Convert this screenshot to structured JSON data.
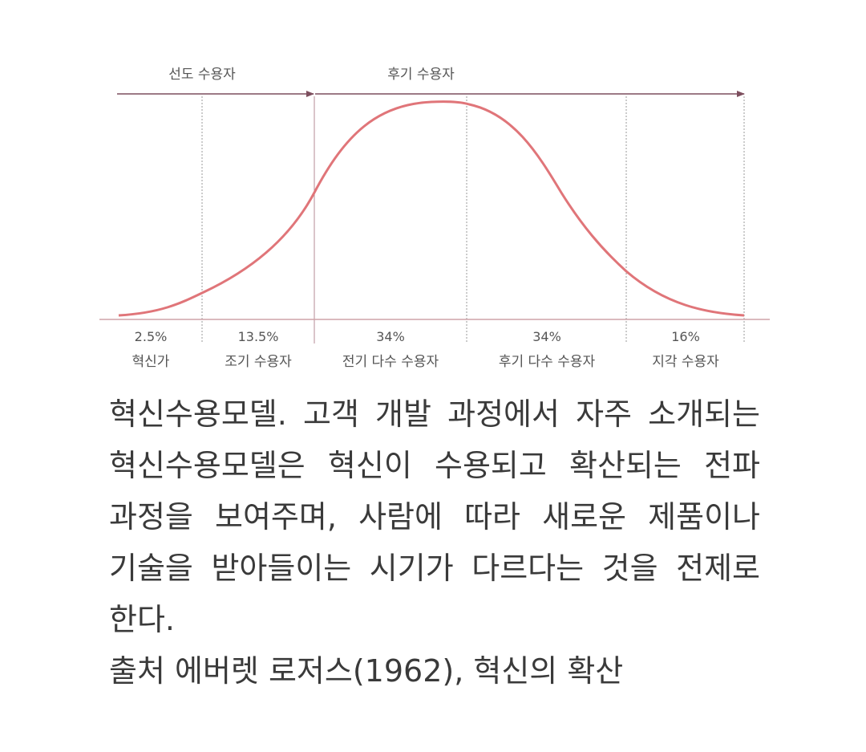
{
  "diagram": {
    "top_arrows": {
      "early": "선도 수용자",
      "late": "후기 수용자"
    },
    "segments": [
      {
        "percent": "2.5%",
        "label": "혁신가"
      },
      {
        "percent": "13.5%",
        "label": "조기 수용자"
      },
      {
        "percent": "34%",
        "label": "전기 다수 수용자"
      },
      {
        "percent": "34%",
        "label": "후기 다수 수용자"
      },
      {
        "percent": "16%",
        "label": "지각 수용자"
      }
    ],
    "colors": {
      "curve": "#e07579",
      "arrow": "#7d4f5e",
      "baseline": "#cfa3a8",
      "divider": "#999999",
      "text": "#555555"
    }
  },
  "caption": {
    "body": "혁신수용모델. 고객 개발 과정에서 자주 소개되는 혁신수용모델은 혁신이 수용되고 확산되는 전파 과정을 보여주며, 사람에 따라 새로운 제품이나 기술을 받아들이는 시기가 다르다는 것을 전제로 한다.",
    "source": "출처 에버렛 로저스(1962), 혁신의 확산"
  }
}
